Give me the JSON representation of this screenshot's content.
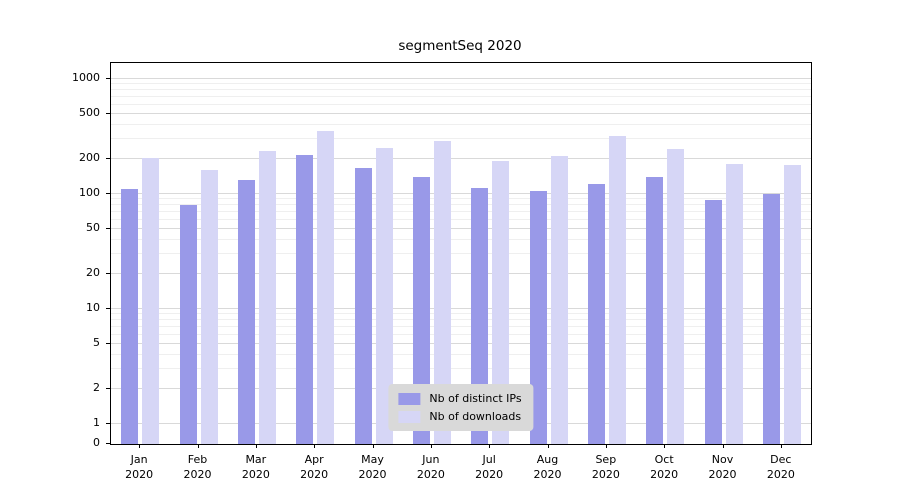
{
  "chart_data": {
    "type": "bar",
    "title": "segmentSeq 2020",
    "x_year": "2020",
    "categories": [
      "Jan",
      "Feb",
      "Mar",
      "Apr",
      "May",
      "Jun",
      "Jul",
      "Aug",
      "Sep",
      "Oct",
      "Nov",
      "Dec"
    ],
    "series": [
      {
        "name": "Nb of distinct IPs",
        "color": "#9999e8",
        "values": [
          110,
          80,
          132,
          220,
          168,
          140,
          112,
          106,
          122,
          142,
          88,
          100
        ]
      },
      {
        "name": "Nb of downloads",
        "color": "#d6d6f6",
        "values": [
          207,
          162,
          235,
          355,
          250,
          290,
          192,
          212,
          320,
          248,
          181,
          180
        ]
      }
    ],
    "y_ticks": [
      0,
      1,
      2,
      5,
      10,
      20,
      50,
      100,
      200,
      500,
      1000
    ],
    "y_scale": "log above 1, linear 0-1",
    "ylim": [
      0,
      1400
    ],
    "xlabel": "",
    "ylabel": "",
    "grid": true,
    "legend_position": "lower center inside plot"
  }
}
